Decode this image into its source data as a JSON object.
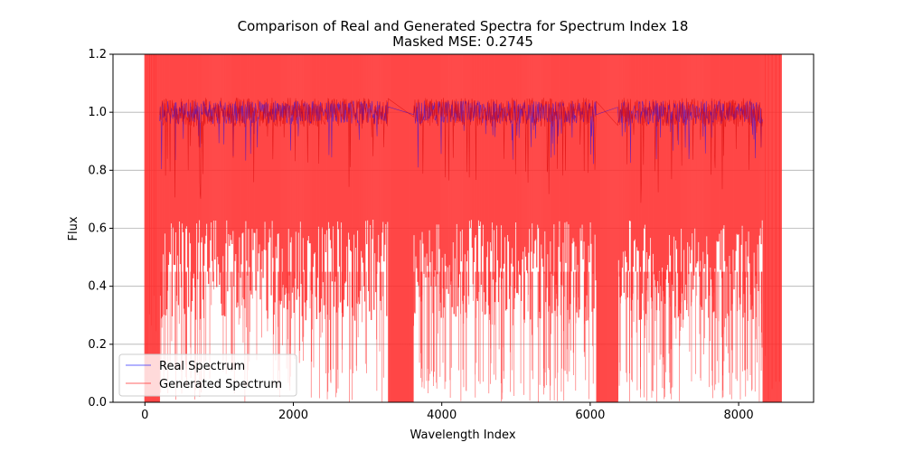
{
  "chart_data": {
    "type": "line",
    "title": "Comparison of Real and Generated Spectra for Spectrum Index 18",
    "subtitle": "Masked MSE: 0.2745",
    "xlabel": "Wavelength Index",
    "ylabel": "Flux",
    "xlim": [
      -430,
      9010
    ],
    "ylim": [
      0.0,
      1.2
    ],
    "xticks": [
      0,
      2000,
      4000,
      6000,
      8000
    ],
    "xtick_labels": [
      "0",
      "2000",
      "4000",
      "6000",
      "8000"
    ],
    "yticks": [
      0.0,
      0.2,
      0.4,
      0.6,
      0.8,
      1.0,
      1.2
    ],
    "ytick_labels": [
      "0.0",
      "0.2",
      "0.4",
      "0.6",
      "0.8",
      "1.0",
      "1.2"
    ],
    "grid": true,
    "legend_position": "lower-left",
    "x_range": [
      0,
      8575
    ],
    "segments": [
      {
        "x_start": 200,
        "x_end": 3280
      },
      {
        "x_start": 3620,
        "x_end": 6080
      },
      {
        "x_start": 6370,
        "x_end": 8320
      }
    ],
    "gaps": [
      {
        "x_start": 3280,
        "x_end": 3620
      },
      {
        "x_start": 6080,
        "x_end": 6370
      }
    ],
    "series": [
      {
        "name": "Real Spectrum",
        "color": "#0000ff",
        "continuum_level": 1.0,
        "typical_range": [
          0.93,
          1.07
        ],
        "minimum_in_absorption": 0.82
      },
      {
        "name": "Generated Spectrum",
        "color": "#ff0000",
        "continuum_level": 1.0,
        "typical_range": [
          0.3,
          1.2
        ],
        "minimum_in_dips": 0.0
      }
    ]
  },
  "legend": {
    "real_label": "Real Spectrum",
    "generated_label": "Generated Spectrum"
  }
}
